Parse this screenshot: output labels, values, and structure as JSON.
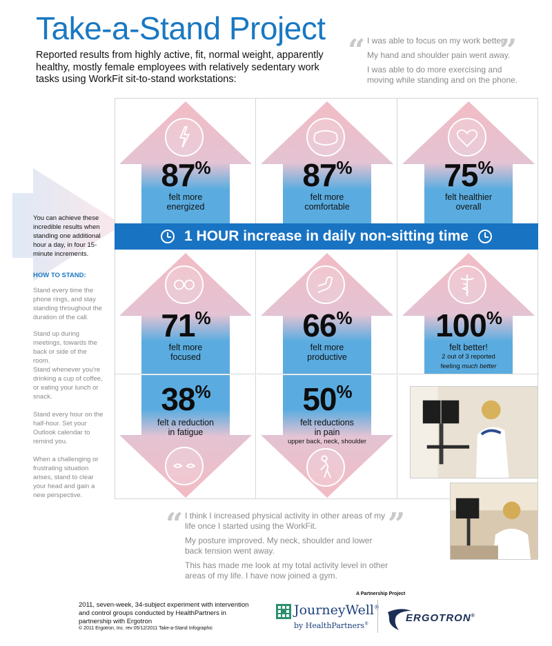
{
  "title": "Take-a-Stand Project",
  "intro": "Reported results from highly active, fit, normal weight, apparently healthy, mostly female employees with relatively sedentary work tasks using WorkFit sit-to-stand workstations:",
  "quote_top": [
    "I was able to focus on my work better.",
    "My hand and shoulder pain went away.",
    "I was able to do more exercising and moving while standing and on the phone."
  ],
  "quote_bottom": [
    "I think I increased physical activity in other areas of my life once I started using the WorkFit.",
    "My posture improved. My neck, shoulder and lower back tension went away.",
    "This has made me look at my total activity level in other areas of my life. I have now joined a gym."
  ],
  "quote_marks": {
    "open": "“",
    "close": "”"
  },
  "banner": "1 HOUR increase in daily non-sitting time",
  "stats": {
    "energized": {
      "value": "87",
      "unit": "%",
      "label1": "felt more",
      "label2": "energized",
      "icon": "lightning-head-icon"
    },
    "comfortable": {
      "value": "87",
      "unit": "%",
      "label1": "felt more",
      "label2": "comfortable",
      "icon": "pillow-icon"
    },
    "healthier": {
      "value": "75",
      "unit": "%",
      "label1": "felt healthier",
      "label2": "overall",
      "icon": "heart-icon"
    },
    "focused": {
      "value": "71",
      "unit": "%",
      "label1": "felt more",
      "label2": "focused",
      "icon": "binoculars-icon"
    },
    "productive": {
      "value": "66",
      "unit": "%",
      "label1": "felt more",
      "label2": "productive",
      "icon": "flexing-arm-icon"
    },
    "better": {
      "value": "100",
      "unit": "%",
      "label1": "felt better!",
      "label2": "2 out of 3 reported",
      "label3a": "feeling ",
      "label3b": "much better",
      "icon": "caduceus-icon"
    },
    "fatigue": {
      "value": "38",
      "unit": "%",
      "label1": "felt a reduction",
      "label2": "in fatigue",
      "icon": "tired-eyes-icon"
    },
    "pain": {
      "value": "50",
      "unit": "%",
      "label1": "felt reductions",
      "label2": "in pain",
      "label3": "upper back, neck, shoulder",
      "icon": "bent-person-icon"
    }
  },
  "sidebar": {
    "lead": "You can achieve these incredible results when standing one additional hour a day, in four 15-minute increments.",
    "how_heading": "HOW TO STAND:",
    "tips": [
      "Stand every time the phone rings, and stay standing throughout the duration of the call.",
      "Stand up during meetings, towards the back or side of the room.",
      "Stand whenever you’re drinking a cup of coffee, or eating your lunch or snack.",
      "Stand every hour on the half-hour. Set your Outlook calendar to remind you.",
      "When a challenging or frustrating situation arises, stand to clear your head and gain a new perspective."
    ]
  },
  "footer": {
    "study": "2011, seven-week, 34-subject experiment with intervention and control groups conducted by HealthPartners in partnership with Ergotron",
    "copyright": "© 2011 Ergotron, Inc.   rev 05/12/2011   Take-a-Stand Infographic",
    "partnership": "A Partnership Project",
    "journeywell": "JourneyWell",
    "journeywell_reg": "®",
    "journeywell_sub": "by HealthPartners",
    "journeywell_sub_reg": "®",
    "ergotron": "ERGOTRON",
    "ergotron_reg": "®"
  },
  "colors": {
    "title_blue": "#1a78c2",
    "banner_blue": "#1973c3",
    "arrow_pink": "#f2bcc4",
    "arrow_blue": "#5aace0",
    "quote_gray": "#8a8a8a"
  }
}
